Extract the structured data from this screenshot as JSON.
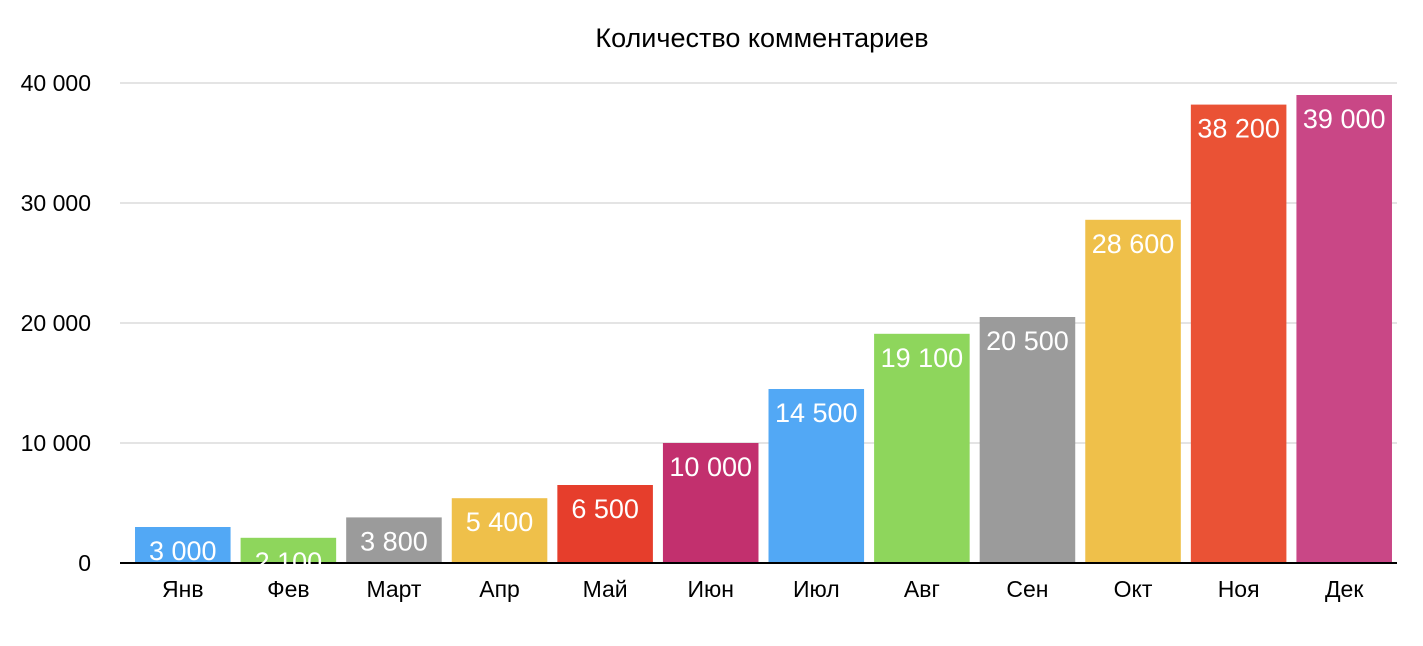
{
  "chart_data": {
    "type": "bar",
    "title": "Количество комментариев",
    "xlabel": "",
    "ylabel": "",
    "categories": [
      "Янв",
      "Фев",
      "Март",
      "Апр",
      "Май",
      "Июн",
      "Июл",
      "Авг",
      "Сен",
      "Окт",
      "Ноя",
      "Дек"
    ],
    "values": [
      3000,
      2100,
      3800,
      5400,
      6500,
      10000,
      14500,
      19100,
      20500,
      28600,
      38200,
      39000
    ],
    "value_labels": [
      "3 000",
      "2 100",
      "3 800",
      "5 400",
      "6 500",
      "10 000",
      "14 500",
      "19 100",
      "20 500",
      "28 600",
      "38 200",
      "39 000"
    ],
    "ylim": [
      0,
      40000
    ],
    "yticks": [
      0,
      10000,
      20000,
      30000,
      40000
    ],
    "ytick_labels": [
      "0",
      "10 000",
      "20 000",
      "30 000",
      "40 000"
    ],
    "bar_colors": [
      "#52a8f5",
      "#8ed65c",
      "#9b9b9b",
      "#efc04a",
      "#e63e2c",
      "#c2306e",
      "#52a8f5",
      "#8ed65c",
      "#9b9b9b",
      "#efc04a",
      "#ea5235",
      "#c94786"
    ],
    "grid": true,
    "legend": "none"
  }
}
